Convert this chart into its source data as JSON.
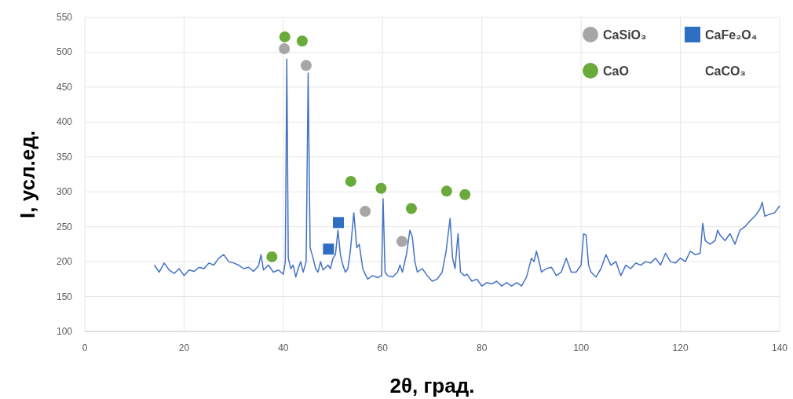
{
  "chart_data": {
    "type": "line",
    "xlabel": "2θ, град.",
    "ylabel": "I, усл.ед.",
    "xlim": [
      0,
      140
    ],
    "ylim": [
      100,
      550
    ],
    "xticks": [
      0,
      20,
      40,
      60,
      80,
      100,
      120,
      140
    ],
    "yticks": [
      100,
      150,
      200,
      250,
      300,
      350,
      400,
      450,
      500,
      550
    ],
    "grid": true,
    "legend": "top right",
    "series": [
      {
        "color": "#4472c4",
        "marker": "none",
        "x": [
          14,
          15,
          16,
          17,
          18,
          19,
          20,
          21,
          22,
          23,
          24,
          25,
          26,
          27,
          28,
          29,
          30,
          31,
          32,
          33,
          34,
          35,
          35.5,
          36,
          37,
          38,
          39,
          40,
          40.4,
          40.7,
          41,
          41.5,
          42,
          42.5,
          43,
          43.5,
          44,
          44.6,
          45,
          45.4,
          46,
          46.5,
          47,
          47.5,
          48,
          49,
          49.5,
          50,
          50.5,
          51,
          51.5,
          52,
          52.5,
          53,
          53.5,
          54.2,
          54.8,
          55.3,
          56,
          56.5,
          57,
          58,
          59,
          59.8,
          60.1,
          60.5,
          61,
          62,
          63,
          63.5,
          64,
          64.8,
          65.5,
          66,
          66.5,
          67,
          68,
          69,
          70,
          71,
          72,
          72.8,
          73.6,
          74.1,
          74.6,
          75.2,
          75.7,
          76.5,
          77,
          78,
          79,
          80,
          81,
          82,
          83,
          84,
          85,
          86,
          87,
          88,
          89,
          90,
          90.5,
          91,
          91.7,
          92,
          93,
          94,
          95,
          96,
          97,
          97.5,
          98,
          99,
          100,
          100.5,
          101,
          101.5,
          102,
          103,
          104,
          105,
          106,
          107,
          108,
          109,
          110,
          111,
          112,
          113,
          114,
          115,
          116,
          117,
          118,
          119,
          120,
          121,
          122,
          123,
          124,
          124.5,
          125,
          126,
          127,
          127.5,
          128,
          129,
          130,
          131,
          132,
          133,
          134,
          135,
          136,
          136.5,
          137,
          138,
          139,
          140
        ],
        "values": [
          195,
          185,
          198,
          188,
          183,
          190,
          180,
          188,
          186,
          192,
          190,
          198,
          195,
          205,
          210,
          200,
          198,
          195,
          190,
          192,
          186,
          194,
          210,
          188,
          195,
          185,
          188,
          182,
          200,
          490,
          205,
          190,
          195,
          178,
          190,
          200,
          185,
          200,
          470,
          220,
          205,
          190,
          185,
          200,
          188,
          195,
          190,
          205,
          210,
          245,
          210,
          195,
          185,
          190,
          215,
          270,
          220,
          225,
          190,
          182,
          175,
          180,
          177,
          180,
          290,
          185,
          180,
          178,
          185,
          195,
          185,
          210,
          245,
          235,
          200,
          185,
          190,
          180,
          172,
          175,
          185,
          215,
          262,
          205,
          190,
          240,
          185,
          180,
          182,
          172,
          175,
          165,
          170,
          168,
          172,
          165,
          170,
          165,
          170,
          165,
          178,
          205,
          200,
          215,
          195,
          185,
          190,
          192,
          180,
          185,
          205,
          195,
          185,
          185,
          195,
          240,
          238,
          195,
          185,
          178,
          190,
          210,
          195,
          200,
          180,
          195,
          190,
          198,
          195,
          200,
          198,
          205,
          195,
          212,
          200,
          198,
          205,
          200,
          215,
          210,
          212,
          255,
          230,
          225,
          230,
          245,
          238,
          230,
          240,
          225,
          245,
          250,
          258,
          265,
          275,
          285,
          265,
          268,
          270,
          280
        ]
      },
      {
        "type": "scatter",
        "name": "CaSiO₃",
        "color": "#a6a6a6",
        "marker": "circle",
        "x": [
          40.2,
          44.6,
          56.5,
          63.9
        ],
        "values": [
          505,
          481,
          272,
          229
        ]
      },
      {
        "type": "scatter",
        "name": "CaFe₂O₄",
        "color": "#2e6fc4",
        "marker": "square",
        "x": [
          49.1,
          51.1
        ],
        "values": [
          218,
          256
        ]
      },
      {
        "type": "scatter",
        "name": "CaO",
        "color": "#6aaa3a",
        "marker": "circle",
        "x": [
          40.3,
          43.8,
          37.7,
          53.6,
          59.7,
          65.8,
          72.9,
          76.6
        ],
        "values": [
          522,
          516,
          207,
          315,
          305,
          276,
          301,
          296
        ]
      }
    ],
    "annotations": [
      "CaCO₃"
    ]
  }
}
